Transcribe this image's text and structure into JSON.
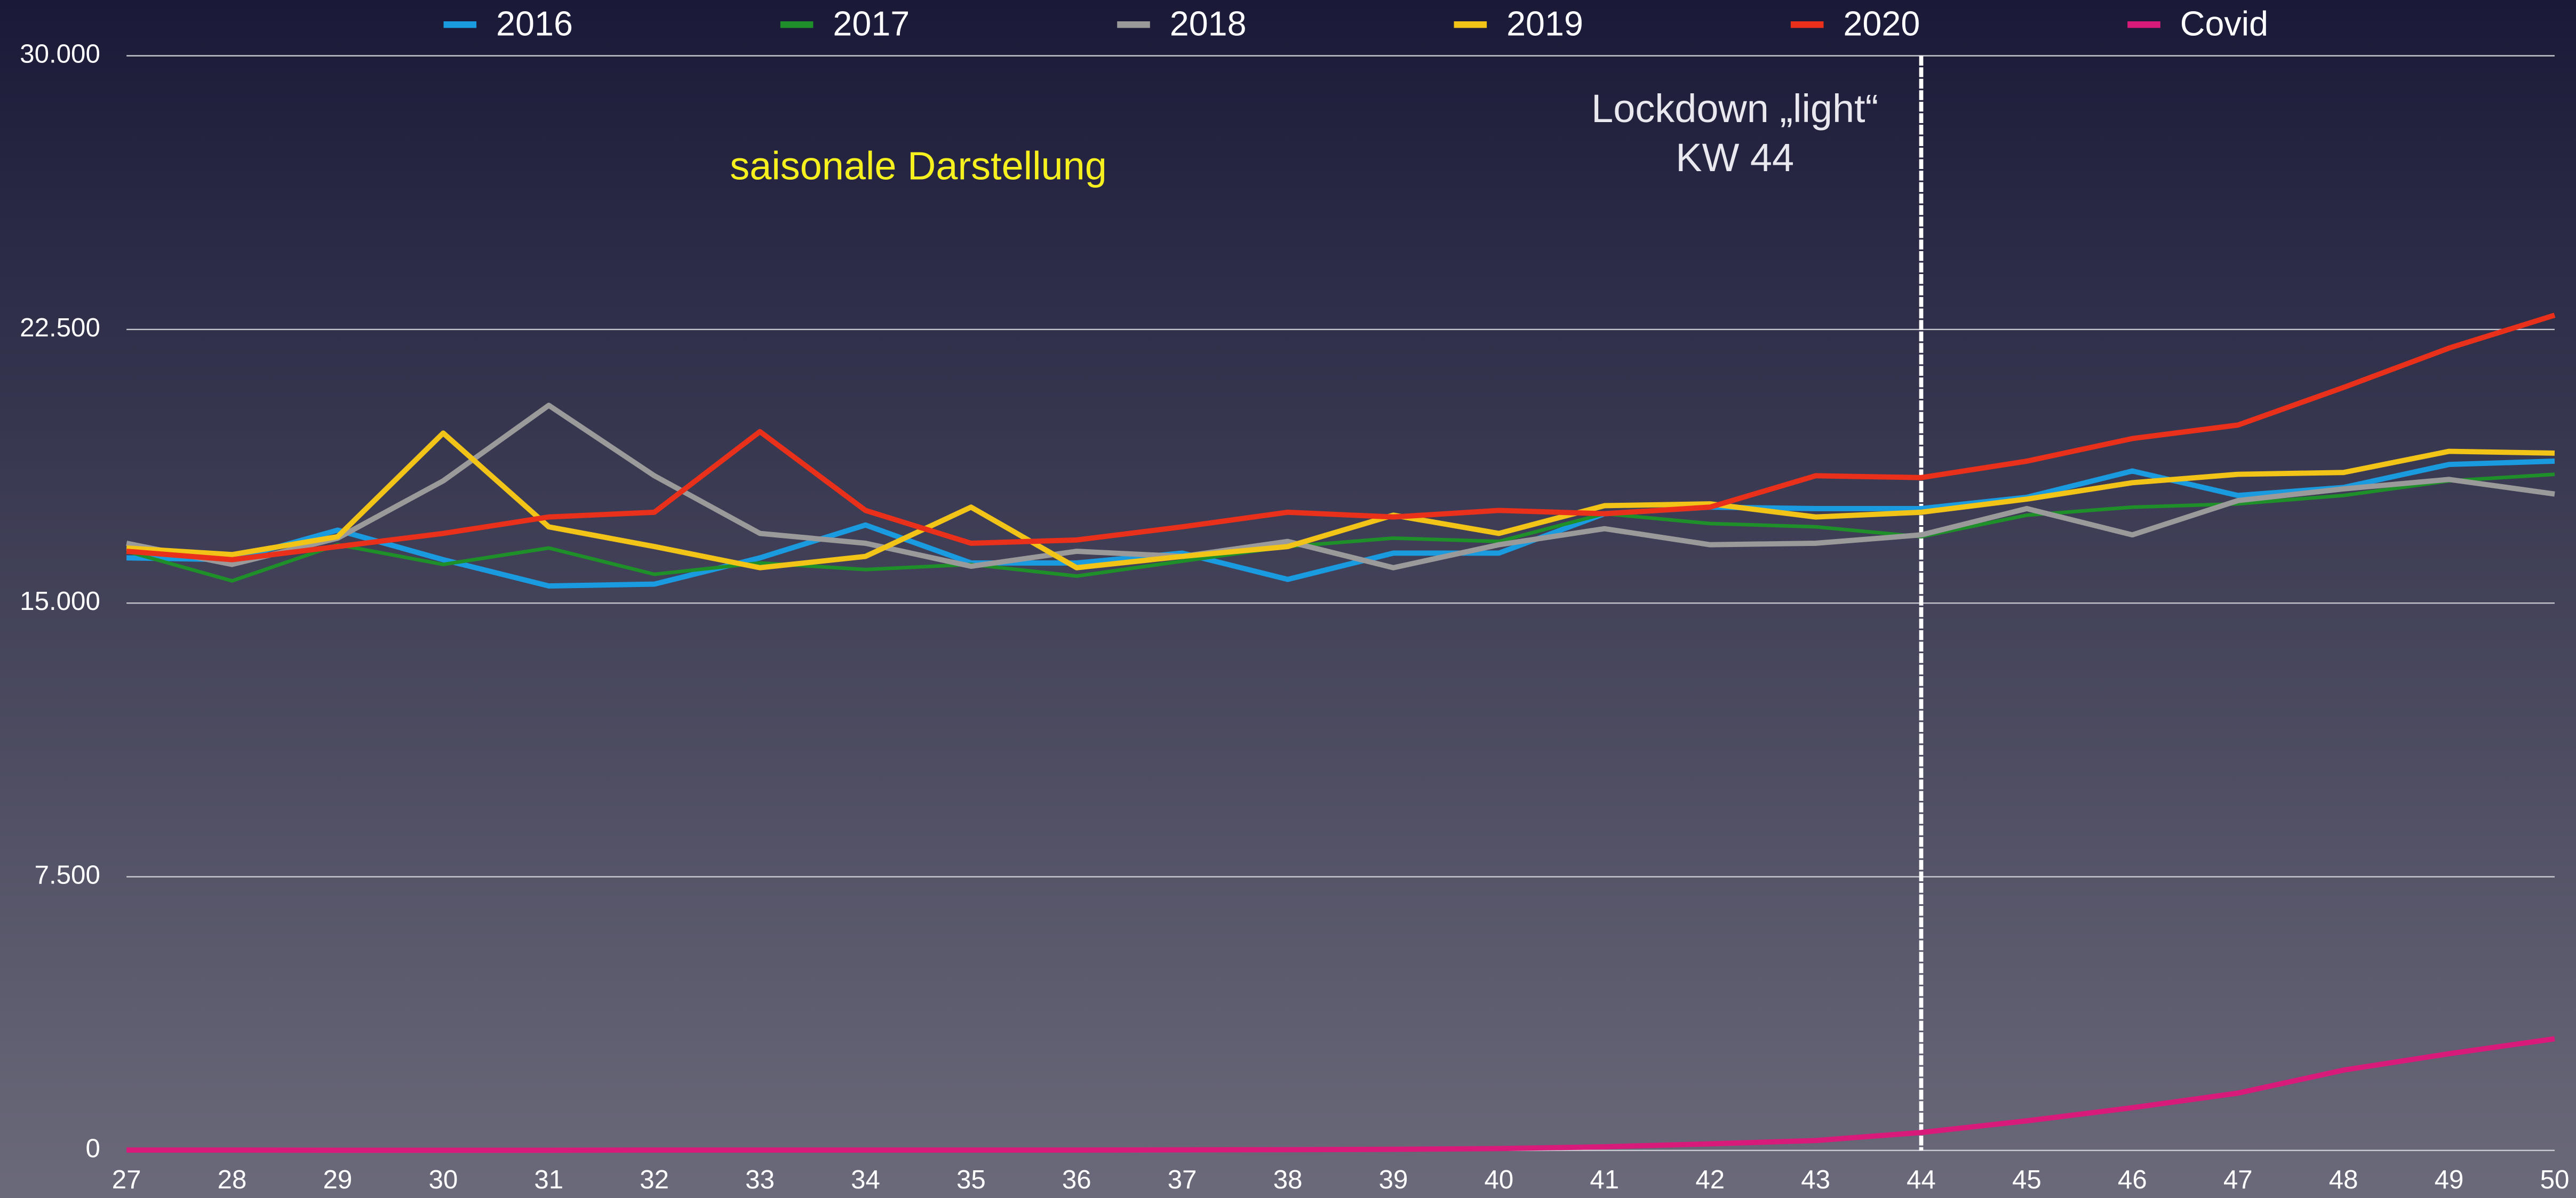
{
  "chart_data": {
    "type": "line",
    "annotation": "saisonale Darstellung",
    "vline": {
      "x": 44,
      "label": [
        "Lockdown „light“",
        "KW 44"
      ]
    },
    "x": [
      27,
      28,
      29,
      30,
      31,
      32,
      33,
      34,
      35,
      36,
      37,
      38,
      39,
      40,
      41,
      42,
      43,
      44,
      45,
      46,
      47,
      48,
      49,
      50
    ],
    "xlim": [
      27,
      50
    ],
    "xticks": [
      27,
      28,
      29,
      30,
      31,
      32,
      33,
      34,
      35,
      36,
      37,
      38,
      39,
      40,
      41,
      42,
      43,
      44,
      45,
      46,
      47,
      48,
      49,
      50
    ],
    "ylim": [
      0,
      30000
    ],
    "yticks": [
      0,
      {
        "value": 7500,
        "label": "7.500"
      },
      {
        "value": 15000,
        "label": "15.000"
      },
      {
        "value": 22500,
        "label": "22.500"
      },
      {
        "value": 30000,
        "label": "30.000"
      }
    ],
    "grid": true,
    "legend": "top",
    "series": [
      {
        "name": "2016",
        "color": "#1a9be0",
        "values": [
          16240,
          16190,
          17000,
          16190,
          15470,
          15520,
          16240,
          17140,
          16100,
          16100,
          16370,
          15650,
          16370,
          16370,
          17450,
          17630,
          17590,
          17590,
          17900,
          18620,
          17950,
          18170,
          18800,
          18890
        ]
      },
      {
        "name": "2017",
        "color": "#1f8f2a",
        "values": [
          16420,
          15610,
          16600,
          16060,
          16510,
          15790,
          16100,
          15920,
          16060,
          15740,
          16150,
          16550,
          16780,
          16690,
          17450,
          17180,
          17090,
          16820,
          17410,
          17630,
          17720,
          17950,
          18350,
          18530
        ]
      },
      {
        "name": "2018",
        "color": "#9a9a9a",
        "values": [
          16640,
          16060,
          16780,
          18350,
          20420,
          18490,
          16910,
          16640,
          16010,
          16420,
          16280,
          16690,
          15970,
          16600,
          17040,
          16600,
          16640,
          16870,
          17590,
          16870,
          17810,
          18130,
          18390,
          17990
        ]
      },
      {
        "name": "2019",
        "color": "#f2c418",
        "values": [
          16510,
          16330,
          16820,
          19660,
          17090,
          16550,
          15970,
          16280,
          17630,
          15970,
          16280,
          16550,
          17410,
          16910,
          17670,
          17720,
          17360,
          17490,
          17850,
          18300,
          18530,
          18580,
          19160,
          19110
        ]
      },
      {
        "name": "2020",
        "color": "#e8301a",
        "values": [
          16420,
          16190,
          16550,
          16910,
          17360,
          17490,
          19700,
          17540,
          16640,
          16730,
          17090,
          17490,
          17360,
          17540,
          17450,
          17630,
          18490,
          18440,
          18890,
          19510,
          19880,
          20910,
          21990,
          22890
        ]
      },
      {
        "name": "Covid",
        "color": "#d81b7a",
        "values": [
          10,
          10,
          5,
          5,
          5,
          10,
          10,
          10,
          10,
          10,
          15,
          20,
          30,
          50,
          100,
          180,
          270,
          490,
          810,
          1170,
          1570,
          2200,
          2650,
          3060
        ]
      }
    ]
  }
}
